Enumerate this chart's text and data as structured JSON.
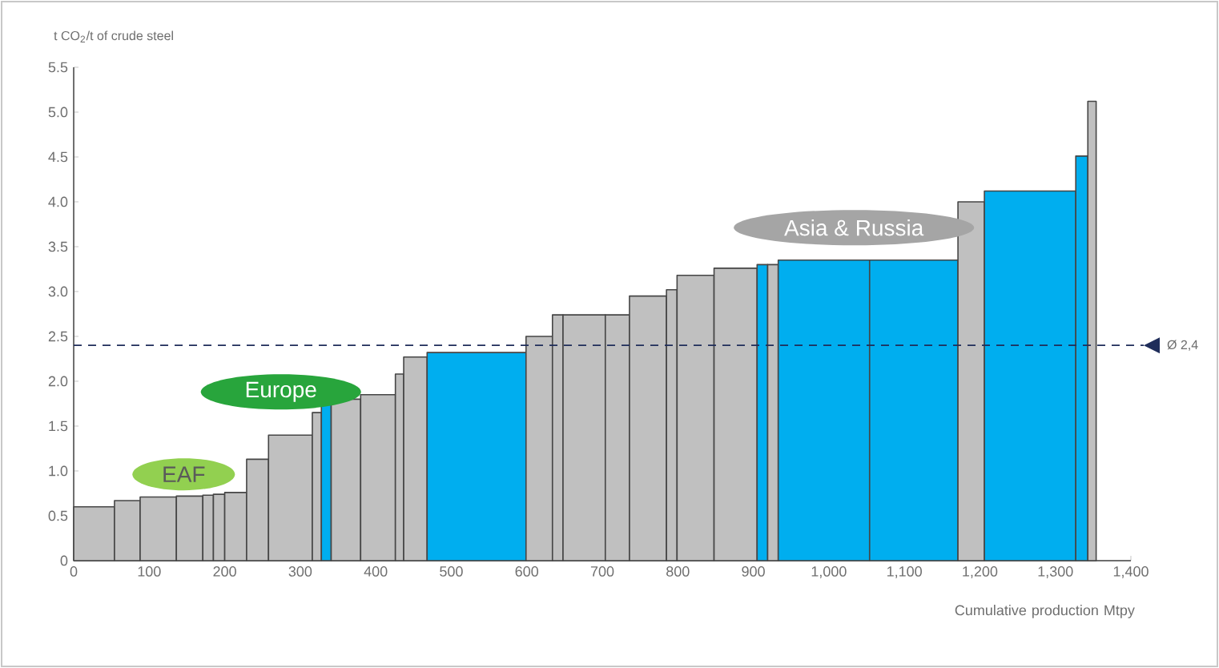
{
  "chart_data": {
    "type": "histogram",
    "ylabel": "t CO$_{2}$/t of crude steel",
    "xlabel": "Cumulative production Mtpy",
    "bins": [
      0,
      54,
      88,
      136,
      171,
      185,
      200,
      229,
      258,
      316,
      328,
      341,
      380,
      426,
      437,
      468,
      599,
      634,
      648,
      704,
      736,
      785,
      799,
      848,
      905,
      919,
      933,
      1054,
      1171,
      1206,
      1327,
      1343,
      1354
    ],
    "values": [
      0.6,
      0.67,
      0.71,
      0.72,
      0.73,
      0.74,
      0.76,
      1.13,
      1.4,
      1.65,
      1.75,
      1.8,
      1.85,
      2.08,
      2.27,
      2.32,
      2.5,
      2.74,
      2.74,
      2.74,
      2.95,
      3.02,
      3.18,
      3.26,
      3.3,
      3.3,
      3.35,
      3.35,
      4.0,
      4.12,
      4.51,
      5.12
    ],
    "colors": [
      "#c0c0c0",
      "#c0c0c0",
      "#c0c0c0",
      "#c0c0c0",
      "#c0c0c0",
      "#c0c0c0",
      "#c0c0c0",
      "#c0c0c0",
      "#c0c0c0",
      "#c0c0c0",
      "#00aeef",
      "#c0c0c0",
      "#c0c0c0",
      "#c0c0c0",
      "#c0c0c0",
      "#00aeef",
      "#c0c0c0",
      "#c0c0c0",
      "#c0c0c0",
      "#c0c0c0",
      "#c0c0c0",
      "#c0c0c0",
      "#c0c0c0",
      "#c0c0c0",
      "#00aeef",
      "#c0c0c0",
      "#00aeef",
      "#00aeef",
      "#c0c0c0",
      "#00aeef",
      "#00aeef",
      "#c0c0c0"
    ],
    "xlim": [
      0,
      1400
    ],
    "xticks": [
      0,
      100,
      200,
      300,
      400,
      500,
      600,
      700,
      800,
      900,
      {
        "value": 1000,
        "label": "1,000"
      },
      {
        "value": 1100,
        "label": "1,100"
      },
      {
        "value": 1200,
        "label": "1,200"
      },
      {
        "value": 1300,
        "label": "1,300"
      },
      {
        "value": 1400,
        "label": "1,400"
      }
    ],
    "ylim": [
      0,
      5.5
    ],
    "yticks": [
      0,
      0.5,
      {
        "value": 1,
        "label": "1.0"
      },
      1.5,
      {
        "value": 2,
        "label": "2.0"
      },
      2.5,
      {
        "value": 3,
        "label": "3.0"
      },
      3.5,
      {
        "value": 4,
        "label": "4.0"
      },
      4.5,
      {
        "value": 5,
        "label": "5.0"
      },
      5.5
    ],
    "ref_lines": [
      {
        "axis": "y",
        "value": 2.4,
        "label": "Ø 2,4",
        "color": "#1f2d5a",
        "line_style": "dashed"
      }
    ],
    "annotations": [
      "EAF",
      "Europe",
      "Asia & Russia"
    ]
  }
}
